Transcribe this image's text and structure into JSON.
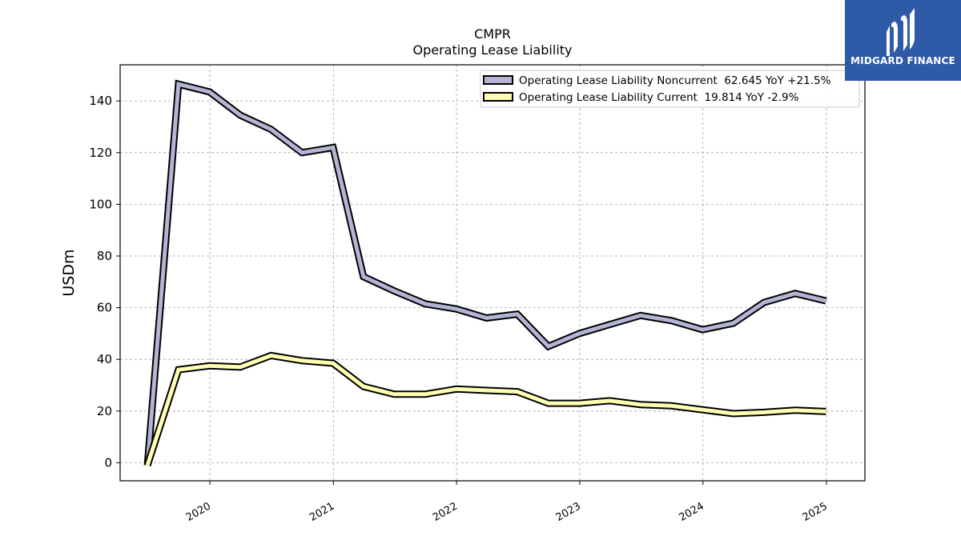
{
  "brand": {
    "name": "MIDGARD FINANCE",
    "color": "#2f5aa8"
  },
  "chart_data": {
    "type": "line",
    "title": "CMPR",
    "subtitle": "Operating Lease Liability",
    "xlabel": "",
    "ylabel": "USDm",
    "xlim": [
      "2019-04-10",
      "2025-04-25"
    ],
    "ylim": [
      -7,
      154
    ],
    "x_ticks": [
      "2020",
      "2021",
      "2022",
      "2023",
      "2024",
      "2025"
    ],
    "y_ticks": [
      0,
      20,
      40,
      60,
      80,
      100,
      120,
      140
    ],
    "grid": true,
    "legend_position": "top-right",
    "x": [
      "2019-06-30",
      "2019-09-30",
      "2019-12-31",
      "2020-03-31",
      "2020-06-30",
      "2020-09-30",
      "2020-12-31",
      "2021-03-31",
      "2021-06-30",
      "2021-09-30",
      "2021-12-31",
      "2022-03-31",
      "2022-06-30",
      "2022-09-30",
      "2022-12-31",
      "2023-03-31",
      "2023-06-30",
      "2023-09-30",
      "2023-12-31",
      "2024-03-31",
      "2024-06-30",
      "2024-09-30",
      "2024-12-31"
    ],
    "series": [
      {
        "name": "Operating Lease Liability Noncurrent  62.645 YoY +21.5%",
        "color": "#b4b4d4",
        "values": [
          -1,
          146.5,
          143.5,
          134.5,
          129.0,
          120.0,
          122.0,
          72.0,
          66.5,
          61.5,
          59.5,
          56.0,
          57.5,
          45.0,
          50.0,
          53.5,
          57.0,
          55.0,
          51.5,
          54.0,
          62.0,
          65.5,
          62.645
        ]
      },
      {
        "name": "Operating Lease Liability Current  19.814 YoY -2.9%",
        "color": "#ffffb4",
        "values": [
          -1,
          36.0,
          37.5,
          37.0,
          41.5,
          39.5,
          38.5,
          29.5,
          26.5,
          26.5,
          28.5,
          28.0,
          27.5,
          23.0,
          23.0,
          24.0,
          22.5,
          22.0,
          20.5,
          19.0,
          19.5,
          20.3,
          19.814
        ]
      }
    ]
  }
}
